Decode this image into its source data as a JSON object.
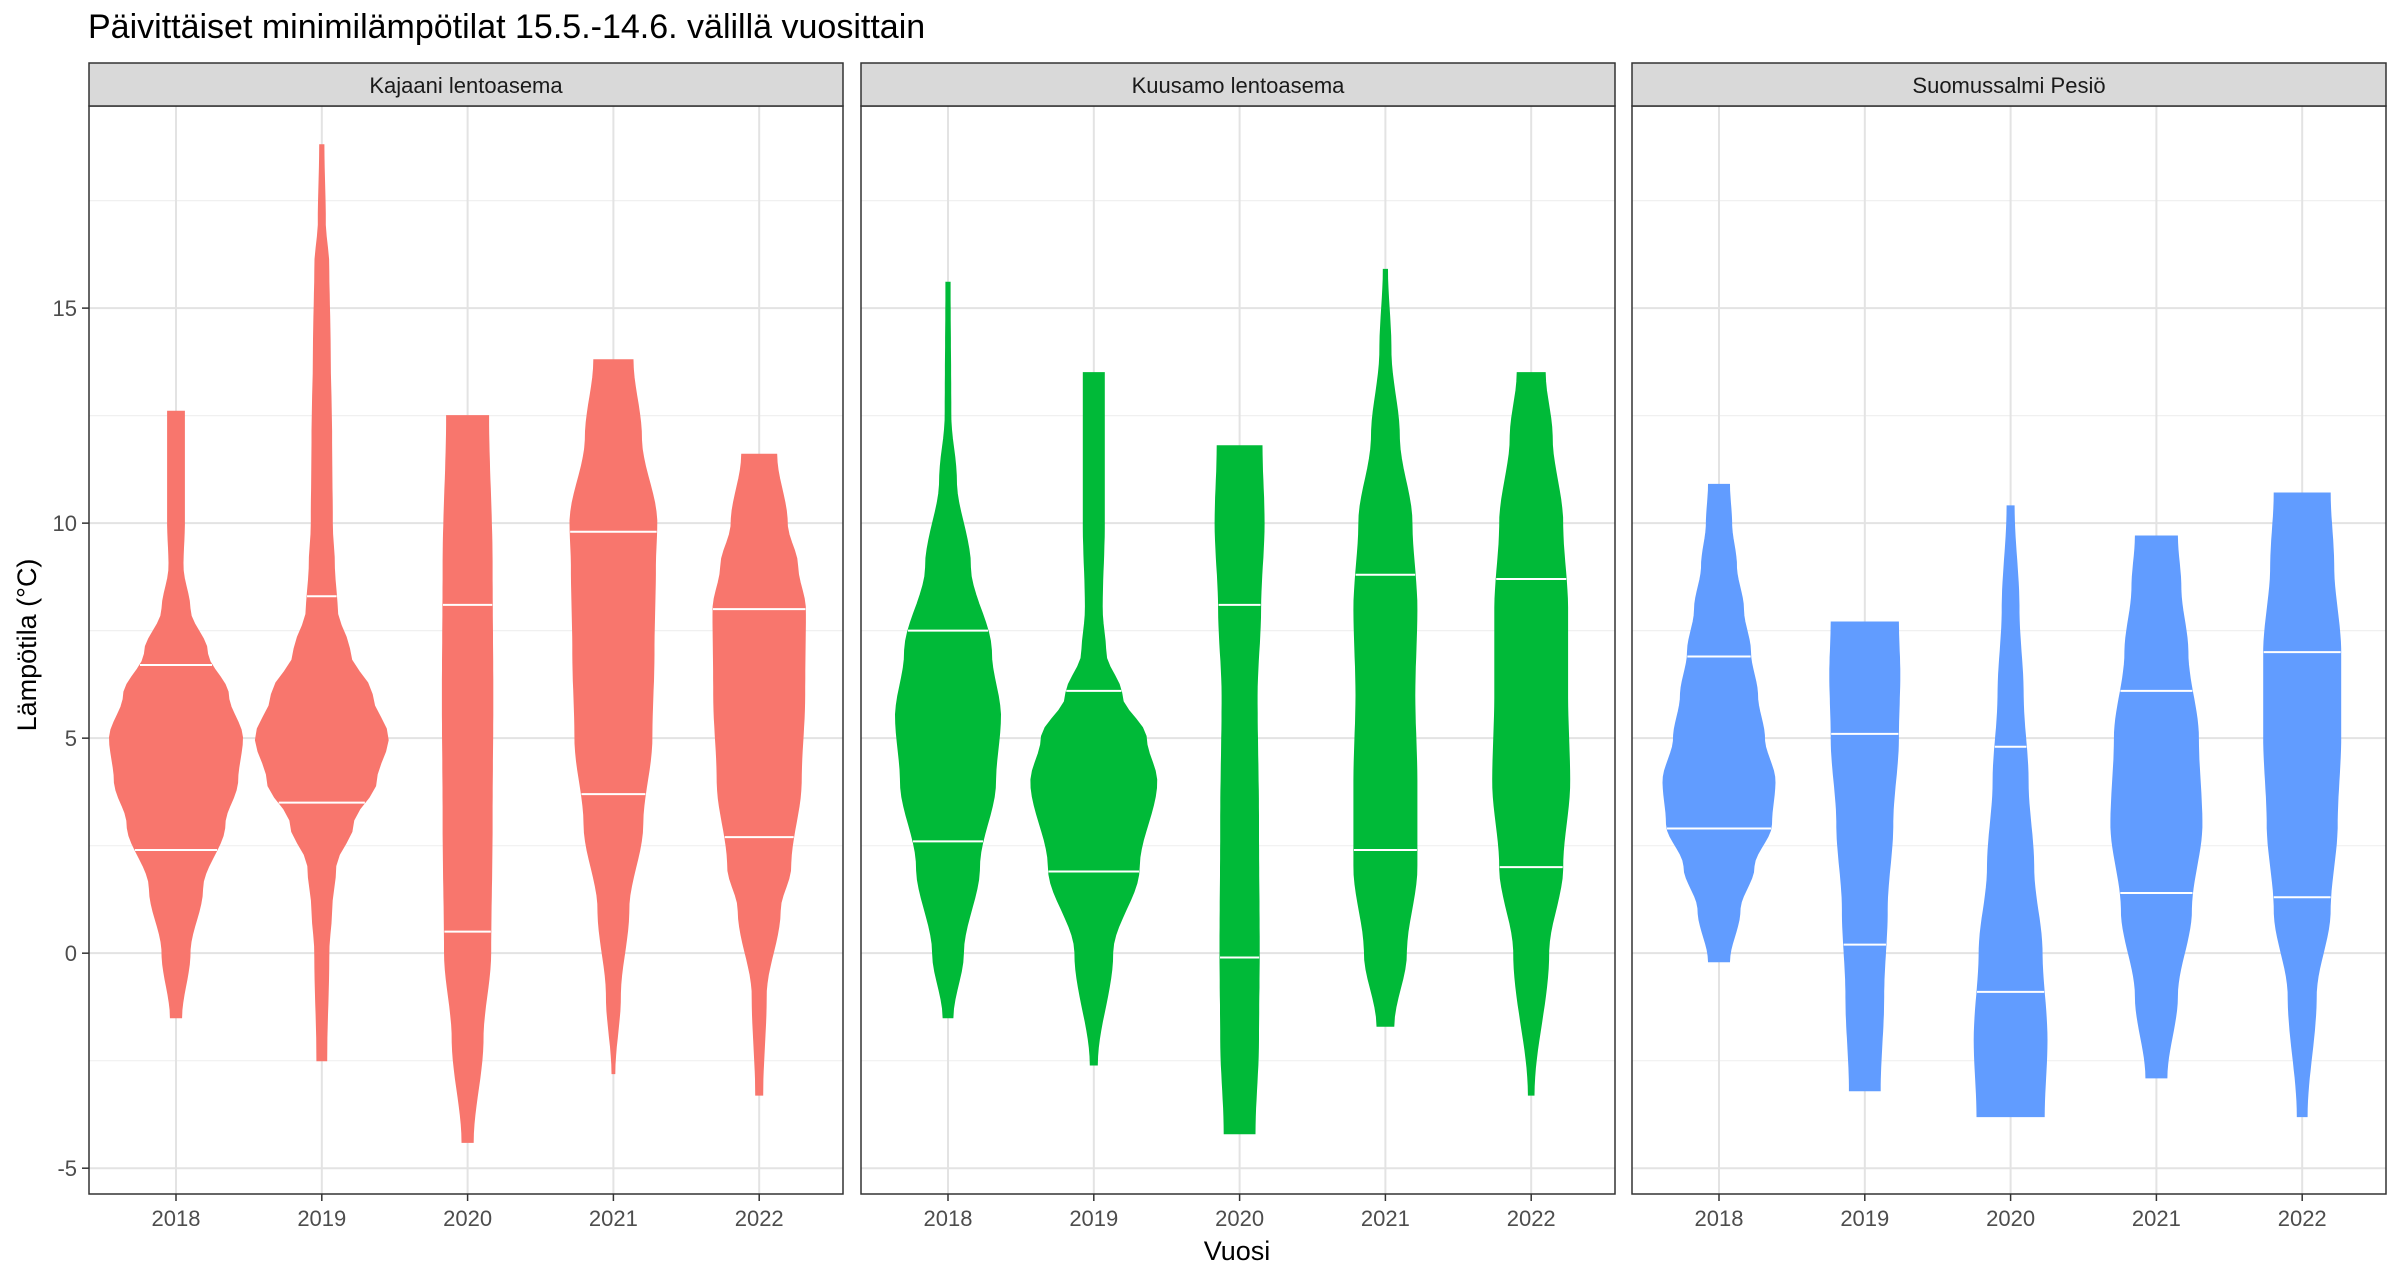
{
  "title": "Päivittäiset minimilämpötilat 15.5.-14.6. välillä vuosittain",
  "chart_data": {
    "type": "violin",
    "title": "Päivittäiset minimilämpötilat 15.5.-14.6. välillä vuosittain",
    "xlabel": "Vuosi",
    "ylabel": "Lämpötila (°C)",
    "ylim": [
      -5.6,
      19.7
    ],
    "yticks": [
      -5,
      0,
      5,
      10,
      15
    ],
    "categories": [
      "2018",
      "2019",
      "2020",
      "2021",
      "2022"
    ],
    "grid": true,
    "panels": [
      {
        "name": "Kajaani lentoasema",
        "color": "#F8766D",
        "violins": [
          {
            "year": "2018",
            "min": -1.5,
            "max": 12.6,
            "quantiles": [
              2.4,
              6.7
            ],
            "profile": [
              [
                -1.5,
                0.08
              ],
              [
                0,
                0.2
              ],
              [
                1.5,
                0.38
              ],
              [
                3,
                0.7
              ],
              [
                4,
                0.88
              ],
              [
                5,
                0.95
              ],
              [
                6,
                0.75
              ],
              [
                7,
                0.45
              ],
              [
                8,
                0.2
              ],
              [
                9,
                0.1
              ],
              [
                10,
                0.12
              ],
              [
                11,
                0.12
              ],
              [
                12.6,
                0.12
              ]
            ]
          },
          {
            "year": "2019",
            "min": -2.5,
            "max": 18.8,
            "quantiles": [
              3.5,
              8.3
            ],
            "profile": [
              [
                -2.5,
                0.07
              ],
              [
                0,
                0.1
              ],
              [
                1,
                0.14
              ],
              [
                2,
                0.2
              ],
              [
                3,
                0.45
              ],
              [
                4,
                0.78
              ],
              [
                5,
                0.95
              ],
              [
                6,
                0.72
              ],
              [
                7,
                0.4
              ],
              [
                8,
                0.22
              ],
              [
                9,
                0.18
              ],
              [
                10,
                0.15
              ],
              [
                12,
                0.14
              ],
              [
                14,
                0.12
              ],
              [
                16,
                0.1
              ],
              [
                17,
                0.05
              ],
              [
                18.8,
                0.03
              ]
            ]
          },
          {
            "year": "2020",
            "min": -4.4,
            "max": 12.5,
            "quantiles": [
              0.5,
              8.1
            ],
            "profile": [
              [
                -4.4,
                0.08
              ],
              [
                -2,
                0.22
              ],
              [
                0,
                0.33
              ],
              [
                3,
                0.35
              ],
              [
                6,
                0.36
              ],
              [
                9,
                0.35
              ],
              [
                12.5,
                0.3
              ]
            ]
          },
          {
            "year": "2021",
            "min": -2.8,
            "max": 13.8,
            "quantiles": [
              3.7,
              9.8
            ],
            "profile": [
              [
                -2.8,
                0.02
              ],
              [
                -1,
                0.1
              ],
              [
                1,
                0.22
              ],
              [
                3,
                0.42
              ],
              [
                5,
                0.55
              ],
              [
                7,
                0.58
              ],
              [
                9,
                0.6
              ],
              [
                10,
                0.62
              ],
              [
                12,
                0.4
              ],
              [
                13.8,
                0.28
              ]
            ]
          },
          {
            "year": "2022",
            "min": -3.3,
            "max": 11.6,
            "quantiles": [
              2.7,
              8.0
            ],
            "profile": [
              [
                -3.3,
                0.05
              ],
              [
                -1,
                0.1
              ],
              [
                1,
                0.3
              ],
              [
                2,
                0.45
              ],
              [
                4,
                0.6
              ],
              [
                6,
                0.65
              ],
              [
                8,
                0.66
              ],
              [
                9,
                0.55
              ],
              [
                10,
                0.4
              ],
              [
                11.6,
                0.25
              ]
            ]
          }
        ]
      },
      {
        "name": "Kuusamo lentoasema",
        "color": "#00BA38",
        "violins": [
          {
            "year": "2018",
            "min": -1.5,
            "max": 15.6,
            "quantiles": [
              2.6,
              7.5
            ],
            "profile": [
              [
                -1.5,
                0.07
              ],
              [
                0,
                0.22
              ],
              [
                2,
                0.45
              ],
              [
                4,
                0.68
              ],
              [
                5.5,
                0.75
              ],
              [
                7,
                0.62
              ],
              [
                9,
                0.32
              ],
              [
                11,
                0.12
              ],
              [
                12.5,
                0.04
              ],
              [
                15.6,
                0.03
              ]
            ]
          },
          {
            "year": "2019",
            "min": -2.6,
            "max": 13.5,
            "quantiles": [
              1.9,
              6.1
            ],
            "profile": [
              [
                -2.6,
                0.05
              ],
              [
                0,
                0.27
              ],
              [
                2,
                0.65
              ],
              [
                4,
                0.9
              ],
              [
                5,
                0.75
              ],
              [
                6,
                0.4
              ],
              [
                7,
                0.17
              ],
              [
                8,
                0.12
              ],
              [
                10,
                0.15
              ],
              [
                12,
                0.15
              ],
              [
                13.5,
                0.15
              ]
            ]
          },
          {
            "year": "2020",
            "min": -4.2,
            "max": 11.8,
            "quantiles": [
              -0.1,
              8.1
            ],
            "profile": [
              [
                -4.2,
                0.22
              ],
              [
                -2,
                0.27
              ],
              [
                0,
                0.28
              ],
              [
                3,
                0.27
              ],
              [
                6,
                0.25
              ],
              [
                8,
                0.3
              ],
              [
                10,
                0.35
              ],
              [
                11.8,
                0.32
              ]
            ]
          },
          {
            "year": "2021",
            "min": -1.7,
            "max": 15.9,
            "quantiles": [
              2.4,
              8.8
            ],
            "profile": [
              [
                -1.7,
                0.12
              ],
              [
                0,
                0.3
              ],
              [
                2,
                0.45
              ],
              [
                4,
                0.45
              ],
              [
                6,
                0.42
              ],
              [
                8,
                0.45
              ],
              [
                10,
                0.38
              ],
              [
                12,
                0.2
              ],
              [
                14,
                0.08
              ],
              [
                15.9,
                0.03
              ]
            ]
          },
          {
            "year": "2022",
            "min": -3.3,
            "max": 13.5,
            "quantiles": [
              2.0,
              8.7
            ],
            "profile": [
              [
                -3.3,
                0.04
              ],
              [
                0,
                0.25
              ],
              [
                2,
                0.45
              ],
              [
                4,
                0.55
              ],
              [
                6,
                0.52
              ],
              [
                8,
                0.52
              ],
              [
                10,
                0.45
              ],
              [
                12,
                0.3
              ],
              [
                13.5,
                0.2
              ]
            ]
          }
        ]
      },
      {
        "name": "Suomussalmi Pesiö",
        "color": "#619CFF",
        "violins": [
          {
            "year": "2018",
            "min": -0.2,
            "max": 10.9,
            "quantiles": [
              2.9,
              6.9
            ],
            "profile": [
              [
                -0.2,
                0.15
              ],
              [
                1,
                0.3
              ],
              [
                2,
                0.5
              ],
              [
                3,
                0.75
              ],
              [
                4,
                0.8
              ],
              [
                5,
                0.65
              ],
              [
                6,
                0.55
              ],
              [
                7,
                0.45
              ],
              [
                8,
                0.35
              ],
              [
                9,
                0.25
              ],
              [
                10,
                0.18
              ],
              [
                10.9,
                0.15
              ]
            ]
          },
          {
            "year": "2019",
            "min": -3.2,
            "max": 7.7,
            "quantiles": [
              0.2,
              5.1
            ],
            "profile": [
              [
                -3.2,
                0.22
              ],
              [
                -1,
                0.27
              ],
              [
                1,
                0.32
              ],
              [
                3,
                0.4
              ],
              [
                5,
                0.48
              ],
              [
                6.5,
                0.5
              ],
              [
                7.7,
                0.48
              ]
            ]
          },
          {
            "year": "2020",
            "min": -3.8,
            "max": 10.4,
            "quantiles": [
              -0.9,
              4.8
            ],
            "profile": [
              [
                -3.8,
                0.48
              ],
              [
                -2,
                0.52
              ],
              [
                0,
                0.45
              ],
              [
                2,
                0.33
              ],
              [
                4,
                0.25
              ],
              [
                6,
                0.18
              ],
              [
                8,
                0.12
              ],
              [
                10.4,
                0.05
              ]
            ]
          },
          {
            "year": "2021",
            "min": -2.9,
            "max": 9.7,
            "quantiles": [
              1.4,
              6.1
            ],
            "profile": [
              [
                -2.9,
                0.15
              ],
              [
                -1,
                0.3
              ],
              [
                1,
                0.5
              ],
              [
                3,
                0.65
              ],
              [
                5,
                0.6
              ],
              [
                7,
                0.45
              ],
              [
                8.5,
                0.35
              ],
              [
                9.7,
                0.3
              ]
            ]
          },
          {
            "year": "2022",
            "min": -3.8,
            "max": 10.7,
            "quantiles": [
              1.3,
              7.0
            ],
            "profile": [
              [
                -3.8,
                0.07
              ],
              [
                -1,
                0.2
              ],
              [
                1,
                0.4
              ],
              [
                3,
                0.5
              ],
              [
                5,
                0.55
              ],
              [
                7,
                0.55
              ],
              [
                9,
                0.45
              ],
              [
                10.7,
                0.4
              ]
            ]
          }
        ]
      }
    ]
  }
}
